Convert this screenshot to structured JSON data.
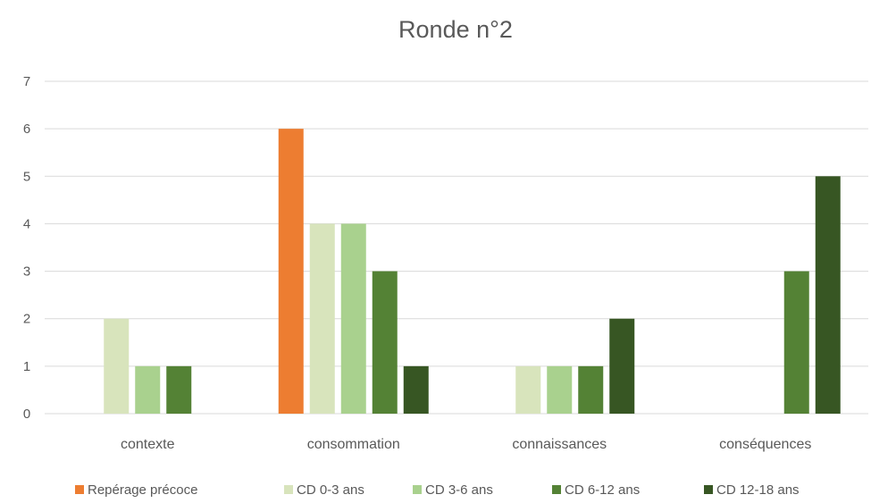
{
  "chart_data": {
    "type": "bar",
    "title": "Ronde n°2",
    "categories": [
      "contexte",
      "consommation",
      "connaissances",
      "conséquences"
    ],
    "series": [
      {
        "name": "Repérage précoce",
        "color": "#ed7d31",
        "values": [
          0,
          6,
          0,
          0
        ]
      },
      {
        "name": "CD 0-3 ans",
        "color": "#d8e4bc",
        "values": [
          2,
          4,
          1,
          0
        ]
      },
      {
        "name": "CD 3-6 ans",
        "color": "#a9d18e",
        "values": [
          1,
          4,
          1,
          0
        ]
      },
      {
        "name": "CD 6-12 ans",
        "color": "#548235",
        "values": [
          1,
          3,
          1,
          3
        ]
      },
      {
        "name": "CD 12-18 ans",
        "color": "#375623",
        "values": [
          0,
          1,
          2,
          5
        ]
      }
    ],
    "ylim": [
      0,
      7
    ],
    "yticks": [
      "0",
      "1",
      "2",
      "3",
      "4",
      "5",
      "6",
      "7"
    ],
    "grid": true,
    "legend_position": "bottom"
  }
}
